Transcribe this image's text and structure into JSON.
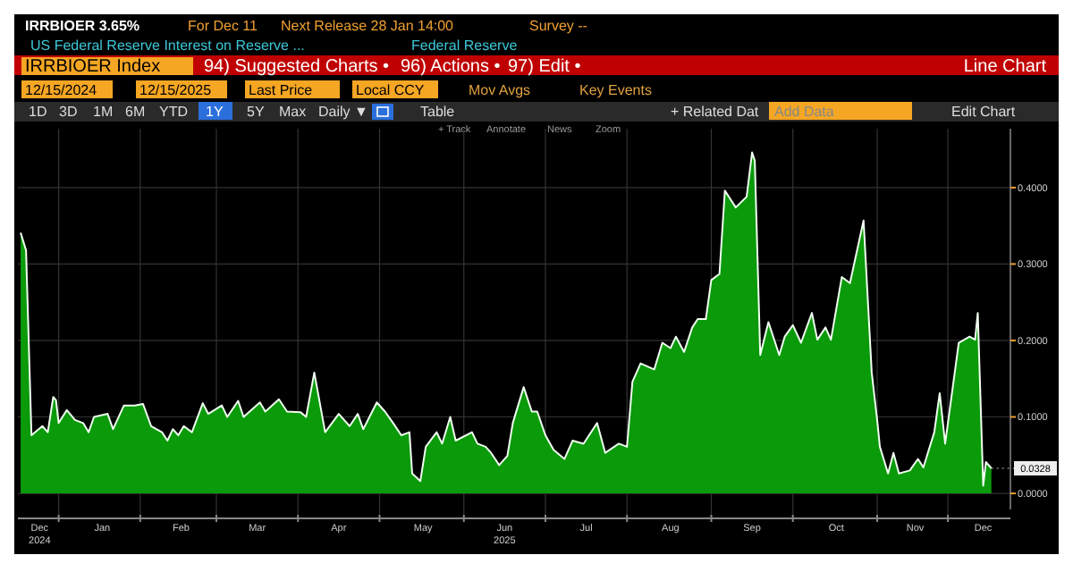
{
  "chart_data": {
    "type": "area",
    "annotations": [
      "IRRBIOER 3.65%",
      "For Dec 11",
      "Next Release 28 Jan 14:00",
      "Survey --",
      "US Federal Reserve Interest on Reserve ...",
      "Federal Reserve",
      "IRRBIOER Index",
      "94) Suggested Charts •",
      "96) Actions •",
      "97) Edit •",
      "Line Chart",
      "12/15/2024",
      "12/15/2025",
      "Last Price",
      "Local CCY",
      "Mov Avgs",
      "Key Events",
      "1D",
      "3D",
      "1M",
      "6M",
      "YTD",
      "1Y",
      "5Y",
      "Max",
      "Daily ▼",
      "Table",
      "+ Related Dat",
      "Add Data",
      "Edit Chart",
      "+ Track",
      "Annotate",
      "News",
      "Zoom",
      {
        "text": "0.0328",
        "x": "2025-12-08",
        "y": 0.0328
      }
    ],
    "x": [
      "2024-12-16",
      "2024-12-18",
      "2024-12-20",
      "2024-12-24",
      "2024-12-26",
      "2024-12-28",
      "2024-12-29",
      "2024-12-30",
      "2025-01-02",
      "2025-01-05",
      "2025-01-08",
      "2025-01-10",
      "2025-01-12",
      "2025-01-17",
      "2025-01-19",
      "2025-01-23",
      "2025-01-27",
      "2025-01-30",
      "2025-02-02",
      "2025-02-06",
      "2025-02-08",
      "2025-02-10",
      "2025-02-12",
      "2025-02-14",
      "2025-02-17",
      "2025-02-21",
      "2025-02-23",
      "2025-02-28",
      "2025-03-02",
      "2025-03-06",
      "2025-03-08",
      "2025-03-14",
      "2025-03-16",
      "2025-03-21",
      "2025-03-24",
      "2025-03-29",
      "2025-03-31",
      "2025-04-03",
      "2025-04-07",
      "2025-04-12",
      "2025-04-16",
      "2025-04-19",
      "2025-04-21",
      "2025-04-26",
      "2025-04-29",
      "2025-05-02",
      "2025-05-05",
      "2025-05-08",
      "2025-05-09",
      "2025-05-12",
      "2025-05-14",
      "2025-05-18",
      "2025-05-20",
      "2025-05-23",
      "2025-05-25",
      "2025-05-31",
      "2025-06-02",
      "2025-06-05",
      "2025-06-07",
      "2025-06-10",
      "2025-06-13",
      "2025-06-15",
      "2025-06-19",
      "2025-06-22",
      "2025-06-24",
      "2025-06-27",
      "2025-06-30",
      "2025-07-04",
      "2025-07-07",
      "2025-07-11",
      "2025-07-16",
      "2025-07-19",
      "2025-07-24",
      "2025-07-27",
      "2025-07-29",
      "2025-08-01",
      "2025-08-06",
      "2025-08-09",
      "2025-08-12",
      "2025-08-14",
      "2025-08-17",
      "2025-08-20",
      "2025-08-22",
      "2025-08-25",
      "2025-08-27",
      "2025-08-30",
      "2025-09-01",
      "2025-09-05",
      "2025-09-09",
      "2025-09-11",
      "2025-09-12",
      "2025-09-14",
      "2025-09-17",
      "2025-09-21",
      "2025-09-23",
      "2025-09-26",
      "2025-09-29",
      "2025-10-03",
      "2025-10-05",
      "2025-10-08",
      "2025-10-10",
      "2025-10-14",
      "2025-10-17",
      "2025-10-22",
      "2025-10-25",
      "2025-10-27",
      "2025-10-28",
      "2025-10-31",
      "2025-11-02",
      "2025-11-04",
      "2025-11-08",
      "2025-11-11",
      "2025-11-13",
      "2025-11-17",
      "2025-11-19",
      "2025-11-21",
      "2025-11-26",
      "2025-11-30",
      "2025-12-02",
      "2025-12-03",
      "2025-12-05",
      "2025-12-06",
      "2025-12-08"
    ],
    "series": [
      {
        "color": "#0a9a0a",
        "values": [
          0.341,
          0.318,
          0.076,
          0.088,
          0.08,
          0.126,
          0.122,
          0.092,
          0.109,
          0.096,
          0.092,
          0.08,
          0.1,
          0.104,
          0.084,
          0.115,
          0.115,
          0.117,
          0.088,
          0.08,
          0.069,
          0.084,
          0.076,
          0.088,
          0.08,
          0.118,
          0.104,
          0.115,
          0.1,
          0.121,
          0.1,
          0.119,
          0.107,
          0.123,
          0.107,
          0.106,
          0.1,
          0.158,
          0.08,
          0.104,
          0.088,
          0.104,
          0.084,
          0.119,
          0.107,
          0.092,
          0.076,
          0.08,
          0.026,
          0.016,
          0.061,
          0.08,
          0.065,
          0.1,
          0.069,
          0.08,
          0.065,
          0.061,
          0.053,
          0.037,
          0.049,
          0.092,
          0.139,
          0.107,
          0.107,
          0.076,
          0.057,
          0.045,
          0.069,
          0.065,
          0.092,
          0.053,
          0.065,
          0.061,
          0.146,
          0.17,
          0.162,
          0.197,
          0.19,
          0.205,
          0.185,
          0.217,
          0.228,
          0.228,
          0.279,
          0.287,
          0.396,
          0.374,
          0.388,
          0.446,
          0.435,
          0.181,
          0.224,
          0.181,
          0.205,
          0.22,
          0.197,
          0.236,
          0.201,
          0.217,
          0.201,
          0.283,
          0.275,
          0.357,
          0.158,
          0.096,
          0.061,
          0.026,
          0.053,
          0.026,
          0.03,
          0.045,
          0.034,
          0.08,
          0.131,
          0.065,
          0.197,
          0.205,
          0.201,
          0.236,
          0.01,
          0.041,
          0.0328
        ]
      }
    ],
    "xlim": [
      "2024-12-15",
      "2025-12-15"
    ],
    "xticks": [
      {
        "value": "2024-12-30",
        "label": null
      },
      {
        "value": "2025-01-29",
        "label": null
      },
      {
        "value": "2025-02-26",
        "label": null
      },
      {
        "value": "2025-03-28",
        "label": null
      },
      {
        "value": "2025-04-27",
        "label": null
      },
      {
        "value": "2025-05-28",
        "label": null
      },
      {
        "value": "2025-06-27",
        "label": null
      },
      {
        "value": "2025-07-27",
        "label": null
      },
      {
        "value": "2025-08-27",
        "label": null
      },
      {
        "value": "2025-09-26",
        "label": null
      },
      {
        "value": "2025-10-27",
        "label": null
      },
      {
        "value": "2025-11-22",
        "label": null
      },
      {
        "value": "2024-12-23",
        "label": "Dec\n2024"
      },
      {
        "value": "2025-01-15",
        "label": "Jan"
      },
      {
        "value": "2025-02-13",
        "label": "Feb"
      },
      {
        "value": "2025-03-13",
        "label": "Mar"
      },
      {
        "value": "2025-04-12",
        "label": "Apr"
      },
      {
        "value": "2025-05-13",
        "label": "May"
      },
      {
        "value": "2025-06-12",
        "label": "Jun\n2025"
      },
      {
        "value": "2025-07-12",
        "label": "Jul"
      },
      {
        "value": "2025-08-12",
        "label": "Aug"
      },
      {
        "value": "2025-09-11",
        "label": "Sep"
      },
      {
        "value": "2025-10-12",
        "label": "Oct"
      },
      {
        "value": "2025-11-10",
        "label": "Nov"
      },
      {
        "value": "2025-12-05",
        "label": "Dec"
      }
    ],
    "ylim": [
      -0.021,
      0.477
    ],
    "yticks": [
      {
        "value": 0,
        "label": "0.0000"
      },
      {
        "value": 0.1,
        "label": "0.1000"
      },
      {
        "value": 0.2,
        "label": "0.2000"
      },
      {
        "value": 0.3,
        "label": "0.3000"
      },
      {
        "value": 0.4,
        "label": "0.4000"
      }
    ],
    "grid": true
  }
}
